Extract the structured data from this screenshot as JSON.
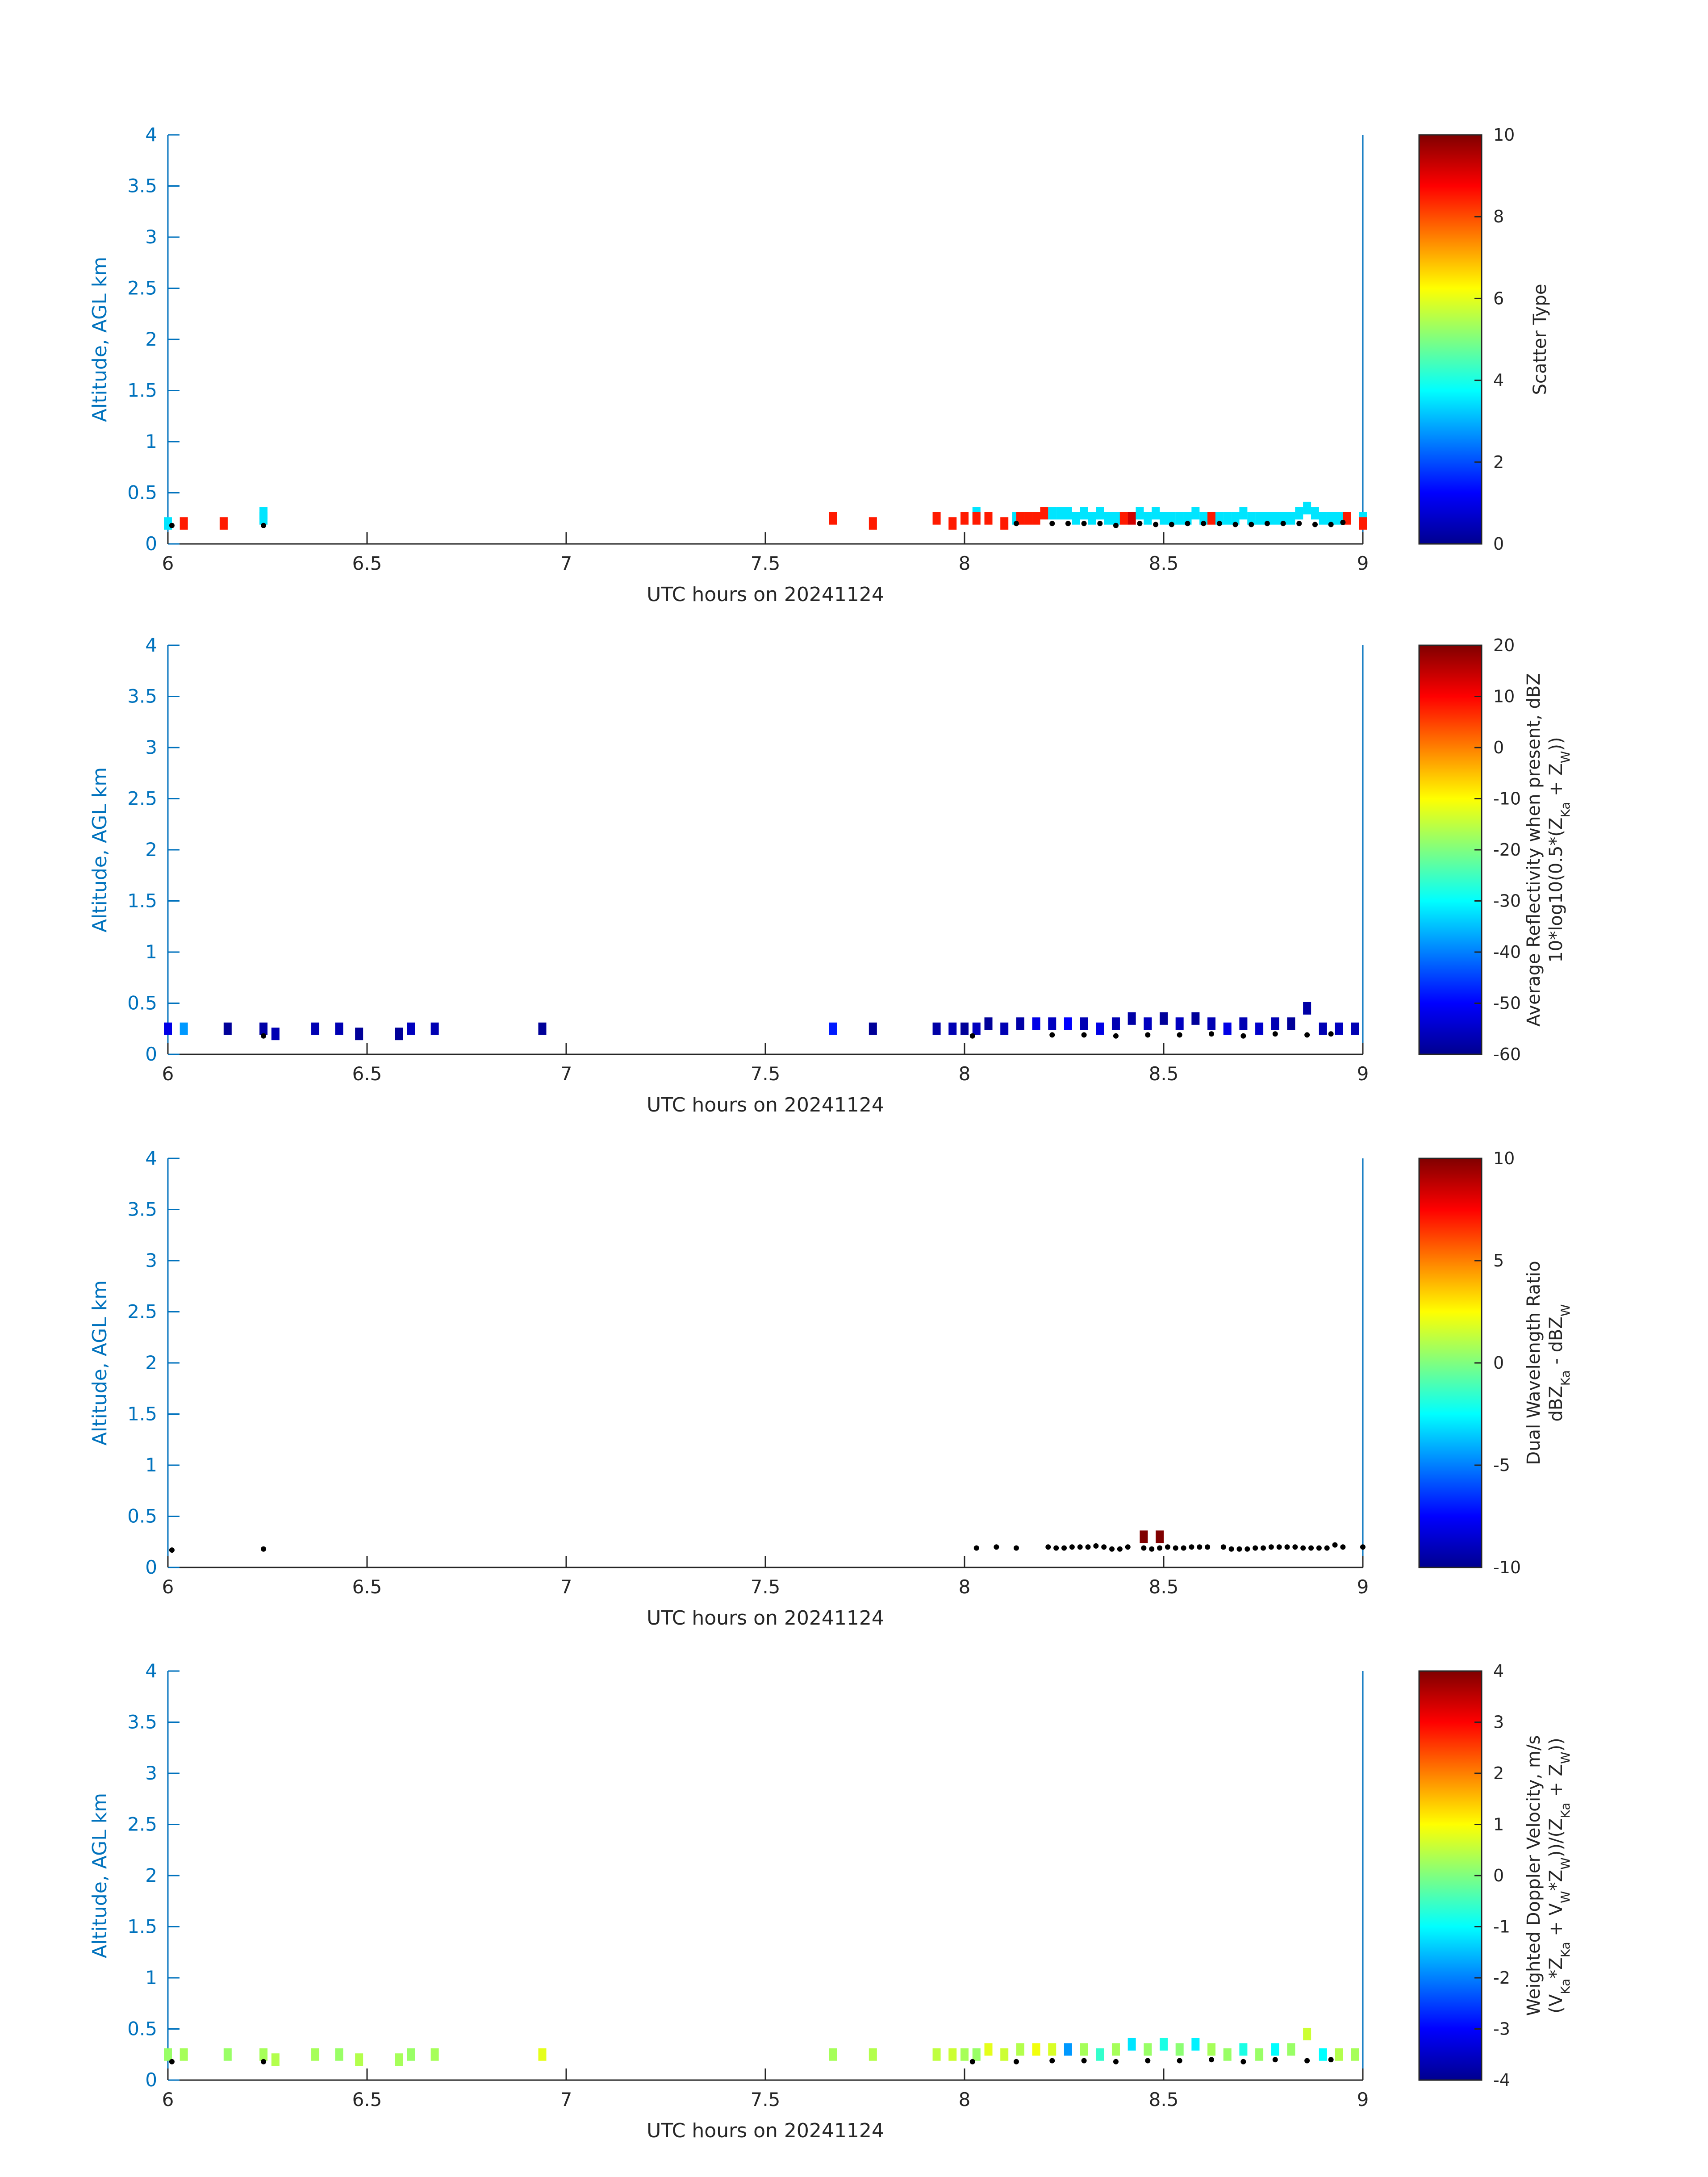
{
  "figure": {
    "xlabel": "UTC hours on 20241124",
    "ylabel": "Altitude, AGL km",
    "colormap": "jet",
    "axis_color": "#0072BD",
    "ground_dot_color": "#000000"
  },
  "chart_data": [
    {
      "type": "heatmap",
      "title": "",
      "xlabel": "UTC hours on 20241124",
      "ylabel": "Altitude, AGL km",
      "xlim": [
        6,
        9
      ],
      "ylim": [
        0,
        4
      ],
      "xticks": [
        "6",
        "6.5",
        "7",
        "7.5",
        "8",
        "8.5",
        "9"
      ],
      "yticks": [
        "0",
        "0.5",
        "1",
        "1.5",
        "2",
        "2.5",
        "3",
        "3.5",
        "4"
      ],
      "grid": false,
      "colorbar": {
        "label": "Scatter Type",
        "lines": [],
        "clim": [
          0,
          10
        ],
        "ticks": [
          "0",
          "2",
          "4",
          "6",
          "8",
          "10"
        ]
      },
      "cells": [
        [
          6.0,
          0.2,
          3.5
        ],
        [
          6.04,
          0.2,
          8.5
        ],
        [
          6.14,
          0.2,
          8.5
        ],
        [
          6.24,
          0.3,
          3.5
        ],
        [
          6.24,
          0.25,
          3.5
        ],
        [
          7.67,
          0.25,
          8.5
        ],
        [
          7.77,
          0.2,
          8.5
        ],
        [
          7.93,
          0.25,
          8.5
        ],
        [
          7.97,
          0.2,
          8.5
        ],
        [
          8.0,
          0.25,
          8.5
        ],
        [
          8.03,
          0.3,
          3.5
        ],
        [
          8.03,
          0.25,
          8.5
        ],
        [
          8.06,
          0.25,
          8.5
        ],
        [
          8.1,
          0.2,
          8.5
        ],
        [
          8.13,
          0.25,
          3.5
        ],
        [
          8.14,
          0.25,
          8.5
        ],
        [
          8.16,
          0.25,
          8.5
        ],
        [
          8.18,
          0.25,
          8.5
        ],
        [
          8.2,
          0.3,
          8.5
        ],
        [
          8.22,
          0.3,
          3.5
        ],
        [
          8.24,
          0.3,
          3.5
        ],
        [
          8.26,
          0.3,
          3.5
        ],
        [
          8.28,
          0.25,
          3.5
        ],
        [
          8.3,
          0.3,
          3.5
        ],
        [
          8.32,
          0.25,
          3.5
        ],
        [
          8.34,
          0.3,
          3.5
        ],
        [
          8.36,
          0.25,
          3.5
        ],
        [
          8.38,
          0.25,
          3.5
        ],
        [
          8.4,
          0.25,
          8.5
        ],
        [
          8.42,
          0.25,
          9.2
        ],
        [
          8.44,
          0.3,
          3.5
        ],
        [
          8.46,
          0.25,
          3.5
        ],
        [
          8.48,
          0.3,
          3.5
        ],
        [
          8.5,
          0.25,
          3.5
        ],
        [
          8.52,
          0.25,
          3.5
        ],
        [
          8.54,
          0.25,
          3.5
        ],
        [
          8.56,
          0.25,
          3.5
        ],
        [
          8.58,
          0.3,
          3.5
        ],
        [
          8.6,
          0.25,
          3.5
        ],
        [
          8.62,
          0.25,
          8.5
        ],
        [
          8.64,
          0.25,
          3.5
        ],
        [
          8.66,
          0.25,
          3.5
        ],
        [
          8.68,
          0.25,
          3.5
        ],
        [
          8.7,
          0.3,
          3.5
        ],
        [
          8.72,
          0.25,
          3.5
        ],
        [
          8.74,
          0.25,
          3.5
        ],
        [
          8.76,
          0.25,
          3.5
        ],
        [
          8.78,
          0.25,
          3.5
        ],
        [
          8.8,
          0.25,
          3.5
        ],
        [
          8.82,
          0.25,
          3.5
        ],
        [
          8.84,
          0.3,
          3.5
        ],
        [
          8.86,
          0.35,
          3.5
        ],
        [
          8.88,
          0.3,
          3.5
        ],
        [
          8.9,
          0.25,
          3.5
        ],
        [
          8.92,
          0.25,
          3.5
        ],
        [
          8.94,
          0.25,
          3.5
        ],
        [
          8.96,
          0.25,
          8.5
        ],
        [
          9.0,
          0.25,
          3.5
        ],
        [
          9.0,
          0.2,
          8.5
        ]
      ],
      "ground_dots": [
        [
          6.01,
          0.18
        ],
        [
          6.24,
          0.18
        ],
        [
          8.13,
          0.2
        ],
        [
          8.22,
          0.2
        ],
        [
          8.26,
          0.2
        ],
        [
          8.3,
          0.2
        ],
        [
          8.34,
          0.2
        ],
        [
          8.38,
          0.18
        ],
        [
          8.44,
          0.2
        ],
        [
          8.48,
          0.19
        ],
        [
          8.52,
          0.19
        ],
        [
          8.56,
          0.2
        ],
        [
          8.6,
          0.2
        ],
        [
          8.64,
          0.2
        ],
        [
          8.68,
          0.19
        ],
        [
          8.72,
          0.19
        ],
        [
          8.76,
          0.2
        ],
        [
          8.8,
          0.2
        ],
        [
          8.84,
          0.2
        ],
        [
          8.88,
          0.19
        ],
        [
          8.92,
          0.19
        ],
        [
          8.95,
          0.21
        ]
      ]
    },
    {
      "type": "heatmap",
      "title": "",
      "xlabel": "UTC hours on 20241124",
      "ylabel": "Altitude, AGL km",
      "xlim": [
        6,
        9
      ],
      "ylim": [
        0,
        4
      ],
      "xticks": [
        "6",
        "6.5",
        "7",
        "7.5",
        "8",
        "8.5",
        "9"
      ],
      "yticks": [
        "0",
        "0.5",
        "1",
        "1.5",
        "2",
        "2.5",
        "3",
        "3.5",
        "4"
      ],
      "grid": false,
      "colorbar": {
        "label": "Average Reflectivity when present, dBZ",
        "lines": [
          "10*log10(0.5*(Z",
          "Ka",
          " + Z",
          "W",
          "))"
        ],
        "clim": [
          -60,
          20
        ],
        "ticks": [
          "-60",
          "-50",
          "-40",
          "-30",
          "-20",
          "-10",
          "0",
          "10",
          "20"
        ]
      },
      "cells": [
        [
          6.0,
          0.25,
          -52
        ],
        [
          6.04,
          0.25,
          -38
        ],
        [
          6.15,
          0.25,
          -58
        ],
        [
          6.24,
          0.25,
          -57
        ],
        [
          6.27,
          0.2,
          -56
        ],
        [
          6.37,
          0.25,
          -56
        ],
        [
          6.43,
          0.25,
          -56
        ],
        [
          6.48,
          0.2,
          -58
        ],
        [
          6.58,
          0.2,
          -58
        ],
        [
          6.61,
          0.25,
          -55
        ],
        [
          6.67,
          0.25,
          -56
        ],
        [
          6.94,
          0.25,
          -58
        ],
        [
          7.67,
          0.25,
          -48
        ],
        [
          7.77,
          0.25,
          -58
        ],
        [
          7.93,
          0.25,
          -57
        ],
        [
          7.97,
          0.25,
          -56
        ],
        [
          8.0,
          0.25,
          -58
        ],
        [
          8.03,
          0.25,
          -55
        ],
        [
          8.06,
          0.3,
          -58
        ],
        [
          8.1,
          0.25,
          -56
        ],
        [
          8.14,
          0.3,
          -57
        ],
        [
          8.18,
          0.3,
          -52
        ],
        [
          8.22,
          0.3,
          -55
        ],
        [
          8.26,
          0.3,
          -50
        ],
        [
          8.3,
          0.3,
          -56
        ],
        [
          8.34,
          0.25,
          -52
        ],
        [
          8.38,
          0.3,
          -56
        ],
        [
          8.42,
          0.35,
          -57
        ],
        [
          8.46,
          0.3,
          -55
        ],
        [
          8.5,
          0.35,
          -58
        ],
        [
          8.54,
          0.3,
          -55
        ],
        [
          8.58,
          0.35,
          -58
        ],
        [
          8.62,
          0.3,
          -56
        ],
        [
          8.66,
          0.25,
          -52
        ],
        [
          8.7,
          0.3,
          -56
        ],
        [
          8.74,
          0.25,
          -54
        ],
        [
          8.78,
          0.3,
          -56
        ],
        [
          8.82,
          0.3,
          -58
        ],
        [
          8.86,
          0.45,
          -57
        ],
        [
          8.9,
          0.25,
          -56
        ],
        [
          8.94,
          0.25,
          -55
        ],
        [
          8.98,
          0.25,
          -56
        ]
      ],
      "ground_dots": [
        [
          6.24,
          0.18
        ],
        [
          8.02,
          0.18
        ],
        [
          8.22,
          0.19
        ],
        [
          8.3,
          0.19
        ],
        [
          8.38,
          0.18
        ],
        [
          8.46,
          0.19
        ],
        [
          8.54,
          0.19
        ],
        [
          8.62,
          0.2
        ],
        [
          8.7,
          0.18
        ],
        [
          8.78,
          0.2
        ],
        [
          8.86,
          0.19
        ],
        [
          8.92,
          0.2
        ]
      ]
    },
    {
      "type": "heatmap",
      "title": "",
      "xlabel": "UTC hours on 20241124",
      "ylabel": "Altitude, AGL km",
      "xlim": [
        6,
        9
      ],
      "ylim": [
        0,
        4
      ],
      "xticks": [
        "6",
        "6.5",
        "7",
        "7.5",
        "8",
        "8.5",
        "9"
      ],
      "yticks": [
        "0",
        "0.5",
        "1",
        "1.5",
        "2",
        "2.5",
        "3",
        "3.5",
        "4"
      ],
      "grid": false,
      "colorbar": {
        "label": "Dual Wavelength Ratio",
        "lines": [
          "dBZ",
          "Ka",
          " - dBZ",
          "W"
        ],
        "clim": [
          -10,
          10
        ],
        "ticks": [
          "-10",
          "-5",
          "0",
          "5",
          "10"
        ]
      },
      "cells": [
        [
          8.45,
          0.3,
          10
        ],
        [
          8.49,
          0.3,
          10
        ]
      ],
      "ground_dots": [
        [
          6.01,
          0.17
        ],
        [
          6.24,
          0.18
        ],
        [
          8.03,
          0.19
        ],
        [
          8.08,
          0.2
        ],
        [
          8.13,
          0.19
        ],
        [
          8.21,
          0.2
        ],
        [
          8.23,
          0.19
        ],
        [
          8.25,
          0.19
        ],
        [
          8.27,
          0.2
        ],
        [
          8.29,
          0.2
        ],
        [
          8.31,
          0.2
        ],
        [
          8.33,
          0.21
        ],
        [
          8.35,
          0.2
        ],
        [
          8.37,
          0.18
        ],
        [
          8.39,
          0.18
        ],
        [
          8.41,
          0.2
        ],
        [
          8.45,
          0.19
        ],
        [
          8.47,
          0.18
        ],
        [
          8.49,
          0.19
        ],
        [
          8.51,
          0.2
        ],
        [
          8.53,
          0.19
        ],
        [
          8.55,
          0.19
        ],
        [
          8.57,
          0.2
        ],
        [
          8.59,
          0.2
        ],
        [
          8.61,
          0.2
        ],
        [
          8.65,
          0.2
        ],
        [
          8.67,
          0.18
        ],
        [
          8.69,
          0.18
        ],
        [
          8.71,
          0.18
        ],
        [
          8.73,
          0.19
        ],
        [
          8.75,
          0.19
        ],
        [
          8.77,
          0.2
        ],
        [
          8.79,
          0.2
        ],
        [
          8.81,
          0.2
        ],
        [
          8.83,
          0.2
        ],
        [
          8.85,
          0.19
        ],
        [
          8.87,
          0.19
        ],
        [
          8.89,
          0.19
        ],
        [
          8.91,
          0.19
        ],
        [
          8.93,
          0.22
        ],
        [
          8.95,
          0.2
        ],
        [
          9.0,
          0.2
        ]
      ]
    },
    {
      "type": "heatmap",
      "title": "",
      "xlabel": "UTC hours on 20241124",
      "ylabel": "Altitude, AGL km",
      "xlim": [
        6,
        9
      ],
      "ylim": [
        0,
        4
      ],
      "xticks": [
        "6",
        "6.5",
        "7",
        "7.5",
        "8",
        "8.5",
        "9"
      ],
      "yticks": [
        "0",
        "0.5",
        "1",
        "1.5",
        "2",
        "2.5",
        "3",
        "3.5",
        "4"
      ],
      "grid": false,
      "colorbar": {
        "label": "Weighted Doppler Velocity, m/s",
        "lines": [
          "(V",
          "Ka",
          "*Z",
          "Ka",
          " + V",
          "W",
          "*Z",
          "W",
          "))/(Z",
          "Ka",
          " + Z",
          "W",
          "))"
        ],
        "clim": [
          -4,
          4
        ],
        "ticks": [
          "-4",
          "-3",
          "-2",
          "-1",
          "0",
          "1",
          "2",
          "3",
          "4"
        ]
      },
      "cells": [
        [
          6.0,
          0.25,
          0.2
        ],
        [
          6.04,
          0.25,
          0.3
        ],
        [
          6.15,
          0.25,
          0.2
        ],
        [
          6.24,
          0.25,
          0.3
        ],
        [
          6.27,
          0.2,
          0.4
        ],
        [
          6.37,
          0.25,
          0.3
        ],
        [
          6.43,
          0.25,
          0.2
        ],
        [
          6.48,
          0.2,
          0.4
        ],
        [
          6.58,
          0.2,
          0.3
        ],
        [
          6.61,
          0.25,
          0.2
        ],
        [
          6.67,
          0.25,
          0.3
        ],
        [
          6.94,
          0.25,
          0.8
        ],
        [
          7.67,
          0.25,
          0.3
        ],
        [
          7.77,
          0.25,
          0.4
        ],
        [
          7.93,
          0.25,
          0.5
        ],
        [
          7.97,
          0.25,
          0.6
        ],
        [
          8.0,
          0.25,
          0.3
        ],
        [
          8.03,
          0.25,
          0.2
        ],
        [
          8.06,
          0.3,
          0.8
        ],
        [
          8.1,
          0.25,
          0.6
        ],
        [
          8.14,
          0.3,
          0.4
        ],
        [
          8.18,
          0.3,
          0.9
        ],
        [
          8.22,
          0.3,
          0.7
        ],
        [
          8.26,
          0.3,
          -1.8
        ],
        [
          8.3,
          0.3,
          0.3
        ],
        [
          8.34,
          0.25,
          -0.6
        ],
        [
          8.38,
          0.3,
          0.3
        ],
        [
          8.42,
          0.35,
          -1.2
        ],
        [
          8.46,
          0.3,
          0.2
        ],
        [
          8.5,
          0.35,
          -0.8
        ],
        [
          8.54,
          0.3,
          0.1
        ],
        [
          8.58,
          0.35,
          -1.1
        ],
        [
          8.62,
          0.3,
          0.3
        ],
        [
          8.66,
          0.25,
          0.2
        ],
        [
          8.7,
          0.3,
          -0.8
        ],
        [
          8.74,
          0.25,
          0.2
        ],
        [
          8.78,
          0.3,
          -1.0
        ],
        [
          8.82,
          0.3,
          0.2
        ],
        [
          8.86,
          0.45,
          0.6
        ],
        [
          8.9,
          0.25,
          -1.0
        ],
        [
          8.94,
          0.25,
          0.4
        ],
        [
          8.98,
          0.25,
          0.3
        ]
      ],
      "ground_dots": [
        [
          6.01,
          0.18
        ],
        [
          6.24,
          0.18
        ],
        [
          8.02,
          0.18
        ],
        [
          8.13,
          0.18
        ],
        [
          8.22,
          0.19
        ],
        [
          8.3,
          0.19
        ],
        [
          8.38,
          0.18
        ],
        [
          8.46,
          0.19
        ],
        [
          8.54,
          0.19
        ],
        [
          8.62,
          0.2
        ],
        [
          8.7,
          0.18
        ],
        [
          8.78,
          0.2
        ],
        [
          8.86,
          0.19
        ],
        [
          8.92,
          0.2
        ]
      ]
    }
  ]
}
